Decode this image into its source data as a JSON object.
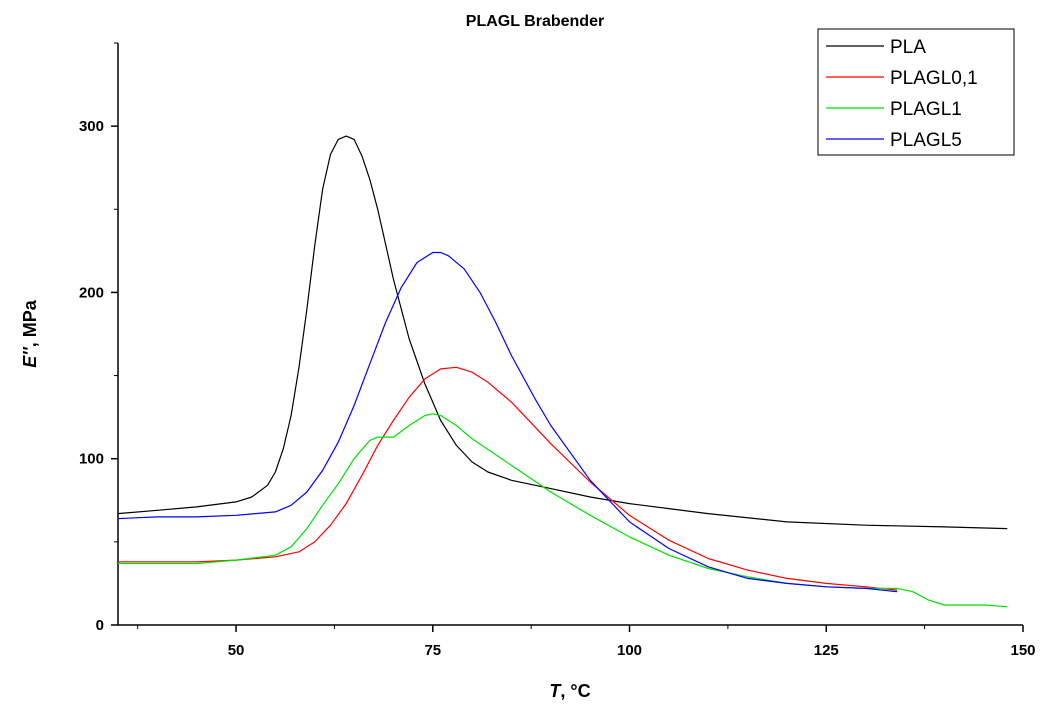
{
  "chart_data": {
    "type": "line",
    "title": "PLAGL Brabender",
    "xlabel": {
      "var": "T",
      "rest": ", °C"
    },
    "ylabel": {
      "var": "E''",
      "rest": ", MPa"
    },
    "xlim": [
      35,
      150
    ],
    "ylim": [
      0,
      350
    ],
    "xticks": [
      50,
      75,
      100,
      125,
      150
    ],
    "yticks": [
      0,
      100,
      200,
      300
    ],
    "legend_position": "top-right",
    "grid": false,
    "series": [
      {
        "name": "PLA",
        "color": "#000000",
        "x": [
          35,
          40,
          45,
          50,
          52,
          54,
          55,
          56,
          57,
          58,
          59,
          60,
          61,
          62,
          63,
          64,
          65,
          66,
          67,
          68,
          69,
          70,
          72,
          74,
          76,
          78,
          80,
          82,
          85,
          90,
          95,
          100,
          105,
          110,
          120,
          130,
          140,
          148
        ],
        "y": [
          67,
          69,
          71,
          74,
          77,
          84,
          92,
          106,
          126,
          155,
          190,
          228,
          262,
          283,
          292,
          294,
          292,
          282,
          268,
          250,
          229,
          208,
          172,
          145,
          123,
          108,
          98,
          92,
          87,
          82,
          77,
          73,
          70,
          67,
          62,
          60,
          59,
          58
        ]
      },
      {
        "name": "PLAGL0,1",
        "color": "#ff0000",
        "x": [
          35,
          40,
          45,
          50,
          55,
          58,
          60,
          62,
          64,
          66,
          68,
          70,
          72,
          74,
          76,
          78,
          80,
          82,
          85,
          88,
          90,
          95,
          100,
          105,
          110,
          115,
          120,
          125,
          130,
          134
        ],
        "y": [
          38,
          38,
          38,
          39,
          41,
          44,
          50,
          60,
          73,
          90,
          108,
          123,
          137,
          148,
          154,
          155,
          152,
          146,
          134,
          119,
          109,
          86,
          66,
          51,
          40,
          33,
          28,
          25,
          23,
          21
        ]
      },
      {
        "name": "PLAGL1",
        "color": "#00e000",
        "x": [
          35,
          40,
          45,
          50,
          55,
          57,
          59,
          61,
          63,
          65,
          67,
          68,
          70,
          72,
          74,
          75,
          76,
          78,
          80,
          85,
          90,
          95,
          100,
          105,
          110,
          115,
          120,
          125,
          130,
          134,
          136,
          138,
          140,
          145,
          148
        ],
        "y": [
          37,
          37,
          37,
          39,
          42,
          47,
          58,
          72,
          85,
          100,
          111,
          113,
          113,
          120,
          126,
          127,
          126,
          120,
          112,
          96,
          80,
          66,
          53,
          42,
          34,
          29,
          25,
          23,
          22,
          22,
          20,
          15,
          12,
          12,
          11
        ]
      },
      {
        "name": "PLAGL5",
        "color": "#0000ff",
        "x": [
          35,
          40,
          45,
          50,
          55,
          57,
          59,
          61,
          63,
          65,
          67,
          69,
          71,
          73,
          75,
          76,
          77,
          79,
          81,
          83,
          85,
          88,
          90,
          95,
          100,
          105,
          110,
          115,
          120,
          125,
          130,
          134
        ],
        "y": [
          64,
          65,
          65,
          66,
          68,
          72,
          80,
          93,
          110,
          132,
          157,
          182,
          203,
          218,
          224,
          224,
          222,
          214,
          200,
          182,
          162,
          136,
          120,
          87,
          62,
          46,
          35,
          28,
          25,
          23,
          22,
          20
        ]
      }
    ]
  }
}
